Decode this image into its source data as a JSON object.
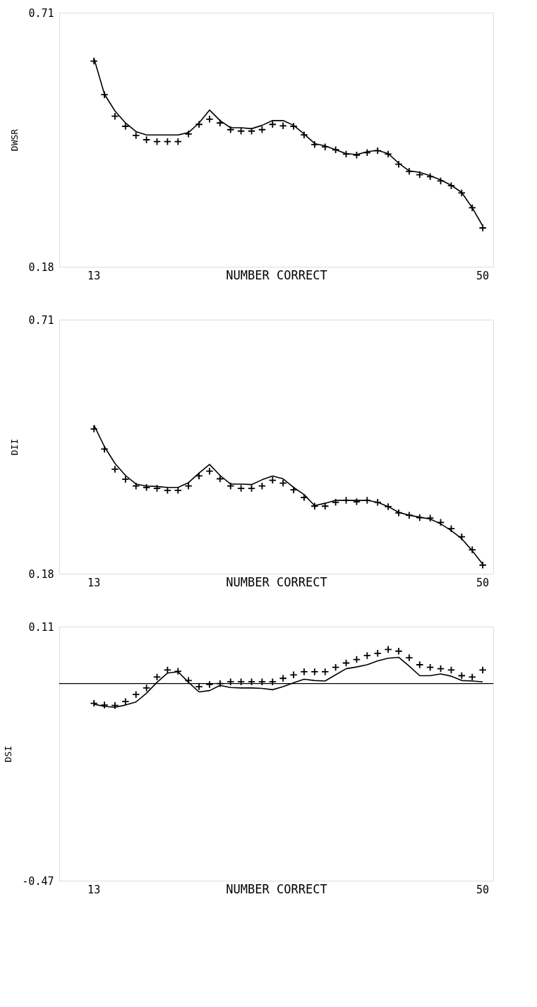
{
  "chart_data": [
    {
      "type": "line",
      "xlabel": "NUMBER CORRECT",
      "ylabel": "DWSR",
      "x": [
        13,
        14,
        15,
        16,
        17,
        18,
        19,
        20,
        21,
        22,
        23,
        24,
        25,
        26,
        27,
        28,
        29,
        30,
        31,
        32,
        33,
        34,
        35,
        36,
        37,
        38,
        39,
        40,
        41,
        42,
        43,
        44,
        45,
        46,
        47,
        48,
        49,
        50
      ],
      "xlim": [
        9.7,
        51
      ],
      "xticks": [
        13,
        50
      ],
      "ylim": [
        0.18,
        0.71
      ],
      "yticks": [
        0.18,
        0.71
      ],
      "grid": false,
      "legend": false,
      "series": [
        {
          "color": "#000000",
          "line_style": "solid",
          "values": [
            0.615,
            0.54,
            0.505,
            0.48,
            0.462,
            0.455,
            0.455,
            0.455,
            0.455,
            0.46,
            0.48,
            0.507,
            0.485,
            0.47,
            0.47,
            0.468,
            0.475,
            0.485,
            0.485,
            0.475,
            0.457,
            0.437,
            0.432,
            0.424,
            0.416,
            0.414,
            0.42,
            0.423,
            0.416,
            0.396,
            0.38,
            0.377,
            0.37,
            0.361,
            0.35,
            0.335,
            0.303,
            0.265
          ]
        },
        {
          "type": "scatter",
          "color": "#000000",
          "marker": "cross",
          "values": [
            0.609,
            0.539,
            0.494,
            0.473,
            0.454,
            0.445,
            0.441,
            0.441,
            0.441,
            0.457,
            0.477,
            0.488,
            0.48,
            0.466,
            0.463,
            0.463,
            0.466,
            0.477,
            0.474,
            0.473,
            0.455,
            0.435,
            0.43,
            0.424,
            0.415,
            0.413,
            0.418,
            0.422,
            0.415,
            0.394,
            0.379,
            0.372,
            0.368,
            0.359,
            0.349,
            0.334,
            0.303,
            0.261
          ]
        }
      ]
    },
    {
      "type": "line",
      "xlabel": "NUMBER CORRECT",
      "ylabel": "DII",
      "x": [
        13,
        14,
        15,
        16,
        17,
        18,
        19,
        20,
        21,
        22,
        23,
        24,
        25,
        26,
        27,
        28,
        29,
        30,
        31,
        32,
        33,
        34,
        35,
        36,
        37,
        38,
        39,
        40,
        41,
        42,
        43,
        44,
        45,
        46,
        47,
        48,
        49,
        50
      ],
      "xlim": [
        9.7,
        51
      ],
      "xticks": [
        13,
        50
      ],
      "ylim": [
        0.18,
        0.71
      ],
      "yticks": [
        0.18,
        0.71
      ],
      "grid": false,
      "legend": false,
      "series": [
        {
          "color": "#000000",
          "line_style": "solid",
          "values": [
            0.49,
            0.445,
            0.41,
            0.385,
            0.367,
            0.363,
            0.362,
            0.36,
            0.36,
            0.37,
            0.39,
            0.408,
            0.385,
            0.367,
            0.367,
            0.366,
            0.376,
            0.384,
            0.378,
            0.36,
            0.345,
            0.322,
            0.327,
            0.333,
            0.333,
            0.333,
            0.333,
            0.329,
            0.32,
            0.308,
            0.302,
            0.298,
            0.294,
            0.284,
            0.27,
            0.253,
            0.228,
            0.2
          ]
        },
        {
          "type": "scatter",
          "color": "#000000",
          "marker": "cross",
          "values": [
            0.482,
            0.44,
            0.398,
            0.377,
            0.363,
            0.36,
            0.358,
            0.354,
            0.354,
            0.363,
            0.384,
            0.394,
            0.378,
            0.363,
            0.358,
            0.358,
            0.363,
            0.375,
            0.369,
            0.355,
            0.339,
            0.321,
            0.321,
            0.329,
            0.333,
            0.33,
            0.333,
            0.329,
            0.32,
            0.307,
            0.302,
            0.297,
            0.296,
            0.287,
            0.274,
            0.257,
            0.23,
            0.198
          ]
        }
      ]
    },
    {
      "type": "line",
      "xlabel": "NUMBER CORRECT",
      "ylabel": "DSI",
      "x": [
        13,
        14,
        15,
        16,
        17,
        18,
        19,
        20,
        21,
        22,
        23,
        24,
        25,
        26,
        27,
        28,
        29,
        30,
        31,
        32,
        33,
        34,
        35,
        36,
        37,
        38,
        39,
        40,
        41,
        42,
        43,
        44,
        45,
        46,
        47,
        48,
        49,
        50
      ],
      "xlim": [
        9.7,
        51
      ],
      "xticks": [
        13,
        50
      ],
      "ylim": [
        -0.47,
        0.11
      ],
      "yticks": [
        -0.47,
        0.11
      ],
      "grid": false,
      "legend": false,
      "ref_lines": [
        {
          "axis": "y",
          "value": -0.02,
          "color": "#000000"
        }
      ],
      "series": [
        {
          "color": "#000000",
          "line_style": "solid",
          "values": [
            -0.067,
            -0.072,
            -0.074,
            -0.069,
            -0.062,
            -0.042,
            -0.017,
            0.004,
            0.007,
            -0.017,
            -0.039,
            -0.036,
            -0.024,
            -0.029,
            -0.03,
            -0.03,
            -0.031,
            -0.034,
            -0.027,
            -0.018,
            -0.01,
            -0.013,
            -0.014,
            0.0,
            0.014,
            0.018,
            0.023,
            0.032,
            0.038,
            0.04,
            0.02,
            -0.002,
            -0.002,
            0.002,
            -0.003,
            -0.013,
            -0.014,
            -0.016
          ]
        },
        {
          "type": "scatter",
          "color": "#000000",
          "marker": "cross",
          "values": [
            -0.065,
            -0.069,
            -0.07,
            -0.061,
            -0.045,
            -0.03,
            -0.005,
            0.011,
            0.008,
            -0.013,
            -0.027,
            -0.022,
            -0.02,
            -0.016,
            -0.016,
            -0.016,
            -0.016,
            -0.016,
            -0.008,
            0.0,
            0.007,
            0.007,
            0.007,
            0.017,
            0.027,
            0.035,
            0.044,
            0.049,
            0.058,
            0.054,
            0.039,
            0.023,
            0.017,
            0.014,
            0.011,
            -0.002,
            -0.005,
            0.011
          ]
        }
      ]
    }
  ]
}
